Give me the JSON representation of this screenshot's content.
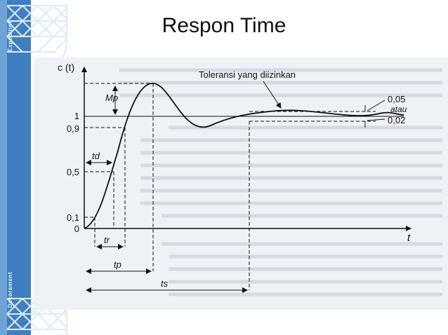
{
  "slide": {
    "title": "Respon Time",
    "sidebar_top_text": "Expedition",
    "sidebar_bottom_text": "Decorament"
  },
  "diagram": {
    "y_axis_label": "c (t)",
    "x_axis_label": "t",
    "y_ticks": [
      "0",
      "0,1",
      "0,5",
      "0,9",
      "1"
    ],
    "tolerance_label": "Toleransi yang diizinkan",
    "tol_upper": "0,05",
    "tol_or": "atau",
    "tol_lower": "0,02",
    "mp_label": "Mp",
    "td_label": "td",
    "tr_label": "tr",
    "tp_label": "tp",
    "ts_label": "ts"
  },
  "colors": {
    "sidebar": "#3f7fbf",
    "ink": "#111111"
  }
}
